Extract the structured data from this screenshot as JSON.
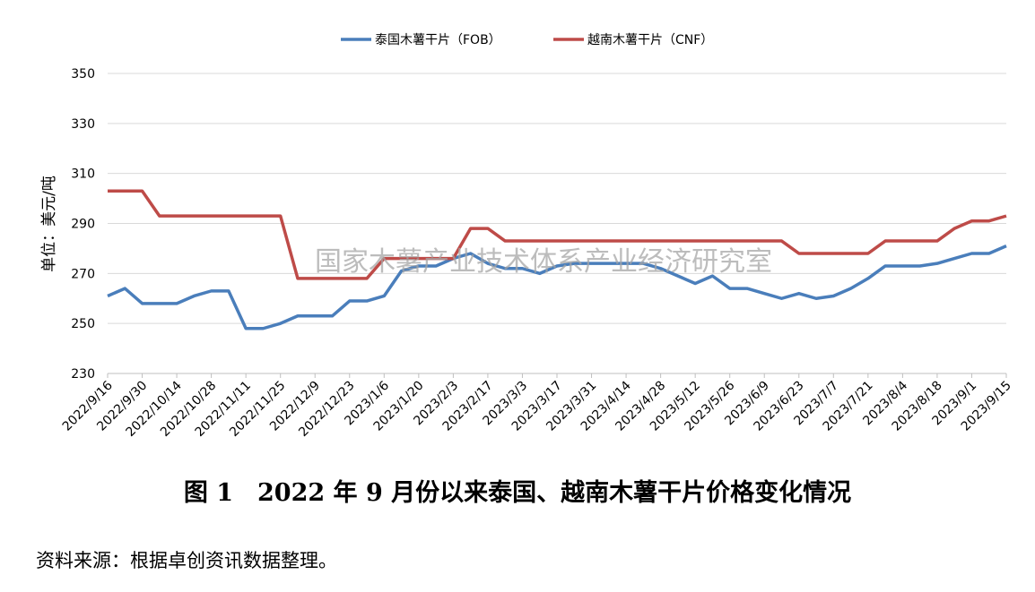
{
  "chart_data": {
    "type": "line",
    "y_label": "单位：美元/吨",
    "watermark": "国家木薯产业技术体系产业经济研究室",
    "categories": [
      "2022/9/16",
      null,
      "2022/9/30",
      null,
      "2022/10/14",
      null,
      "2022/10/28",
      null,
      "2022/11/11",
      null,
      "2022/11/25",
      null,
      "2022/12/9",
      null,
      "2022/12/23",
      null,
      "2023/1/6",
      null,
      "2023/1/20",
      null,
      "2023/2/3",
      null,
      "2023/2/17",
      null,
      "2023/3/3",
      null,
      "2023/3/17",
      null,
      "2023/3/31",
      null,
      "2023/4/14",
      null,
      "2023/4/28",
      null,
      "2023/5/12",
      null,
      "2023/5/26",
      null,
      "2023/6/9",
      null,
      "2023/6/23",
      null,
      "2023/7/7",
      null,
      "2023/7/21",
      null,
      "2023/8/4",
      null,
      "2023/8/18",
      null,
      "2023/9/1",
      null,
      "2023/9/15"
    ],
    "series": [
      {
        "name": "泰国木薯干片（FOB）",
        "color": "#4a7ebb",
        "values": [
          261,
          264,
          258,
          258,
          258,
          261,
          263,
          263,
          248,
          248,
          250,
          253,
          253,
          253,
          259,
          259,
          261,
          271,
          273,
          273,
          276,
          278,
          274,
          272,
          272,
          270,
          273,
          274,
          274,
          274,
          274,
          274,
          272,
          269,
          266,
          269,
          264,
          264,
          262,
          260,
          262,
          260,
          261,
          264,
          268,
          273,
          273,
          273,
          274,
          276,
          278,
          278,
          281
        ]
      },
      {
        "name": "越南木薯干片（CNF）",
        "color": "#be4b48",
        "values": [
          303,
          303,
          303,
          293,
          293,
          293,
          293,
          293,
          293,
          293,
          293,
          268,
          268,
          268,
          268,
          268,
          276,
          276,
          276,
          276,
          276,
          288,
          288,
          283,
          283,
          283,
          283,
          283,
          283,
          283,
          283,
          283,
          283,
          283,
          283,
          283,
          283,
          283,
          283,
          283,
          278,
          278,
          278,
          278,
          278,
          283,
          283,
          283,
          283,
          288,
          291,
          291,
          293
        ]
      }
    ],
    "ylim": [
      230,
      350
    ],
    "yticks": [
      230,
      250,
      270,
      290,
      310,
      330,
      350
    ],
    "grid": true
  },
  "caption": "图 1　2022 年 9 月份以来泰国、越南木薯干片价格变化情况",
  "source": "资料来源：根据卓创资讯数据整理。"
}
